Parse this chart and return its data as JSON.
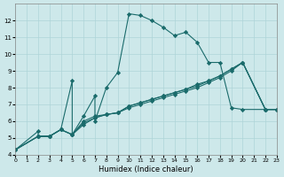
{
  "xlabel": "Humidex (Indice chaleur)",
  "bg_color": "#cde8ea",
  "grid_color": "#aed4d8",
  "line_color": "#1a6b6b",
  "xlim": [
    0,
    23
  ],
  "ylim": [
    4,
    13
  ],
  "xticks": [
    0,
    1,
    2,
    3,
    4,
    5,
    6,
    7,
    8,
    9,
    10,
    11,
    12,
    13,
    14,
    15,
    16,
    17,
    18,
    19,
    20,
    21,
    22,
    23
  ],
  "yticks": [
    4,
    5,
    6,
    7,
    8,
    9,
    10,
    11,
    12
  ],
  "series": [
    {
      "x": [
        0,
        2,
        2,
        3,
        4,
        5,
        5,
        6,
        7,
        7,
        8,
        9,
        10,
        11,
        12,
        13,
        14,
        15,
        16,
        17,
        18,
        19,
        20,
        22,
        23
      ],
      "y": [
        4.3,
        5.4,
        5.1,
        5.1,
        5.5,
        8.4,
        5.2,
        6.3,
        7.5,
        6.0,
        8.0,
        8.9,
        12.4,
        12.3,
        12.0,
        11.6,
        11.1,
        11.3,
        10.7,
        9.5,
        9.5,
        6.8,
        6.7,
        6.7,
        6.7
      ]
    },
    {
      "x": [
        0,
        2,
        3,
        4,
        5,
        6,
        7,
        8,
        9,
        10,
        11,
        12,
        13,
        14,
        15,
        16,
        17,
        18,
        19,
        20,
        22,
        23
      ],
      "y": [
        4.3,
        5.1,
        5.1,
        5.5,
        5.2,
        5.8,
        6.2,
        6.4,
        6.5,
        6.8,
        7.0,
        7.2,
        7.4,
        7.6,
        7.8,
        8.0,
        8.3,
        8.6,
        9.0,
        9.5,
        6.7,
        6.7
      ]
    },
    {
      "x": [
        0,
        2,
        3,
        4,
        5,
        6,
        7,
        8,
        9,
        10,
        11,
        12,
        13,
        14,
        15,
        16,
        17,
        18,
        19,
        20,
        22,
        23
      ],
      "y": [
        4.3,
        5.1,
        5.1,
        5.5,
        5.2,
        5.9,
        6.2,
        6.4,
        6.5,
        6.9,
        7.1,
        7.3,
        7.5,
        7.7,
        7.9,
        8.1,
        8.4,
        8.7,
        9.1,
        9.5,
        6.7,
        6.7
      ]
    },
    {
      "x": [
        0,
        2,
        3,
        4,
        5,
        6,
        7,
        8,
        9,
        10,
        11,
        12,
        13,
        14,
        15,
        16,
        17,
        18,
        19,
        20,
        22,
        23
      ],
      "y": [
        4.3,
        5.1,
        5.1,
        5.5,
        5.2,
        6.0,
        6.3,
        6.4,
        6.5,
        6.9,
        7.1,
        7.3,
        7.5,
        7.7,
        7.9,
        8.2,
        8.4,
        8.7,
        9.1,
        9.5,
        6.7,
        6.7
      ]
    }
  ]
}
